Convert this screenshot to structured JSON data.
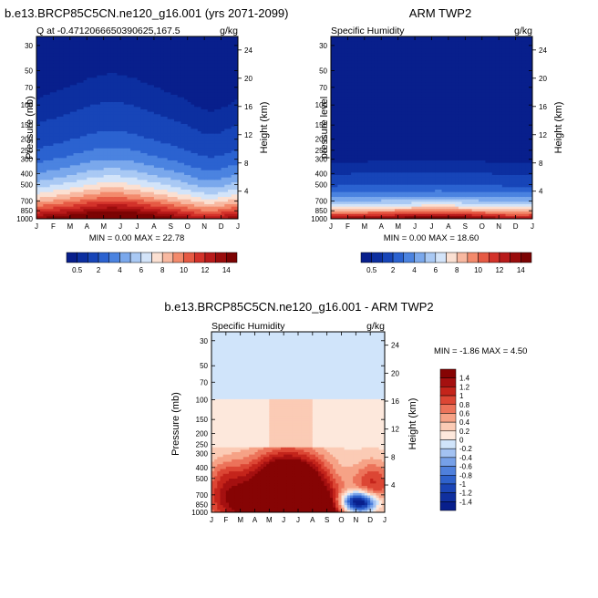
{
  "chart_data": [
    {
      "type": "heatmap",
      "title": "b.e13.BRCP85C5CN.ne120_g16.001 (yrs 2071-2099)",
      "left_label": "Q at -0.4712066650390625,167.5",
      "right_label": "g/kg",
      "xlabel": "",
      "ylabel": "Pressure (mb)",
      "y2label": "Height (km)",
      "x_ticks": [
        "J",
        "F",
        "M",
        "A",
        "M",
        "J",
        "J",
        "A",
        "S",
        "O",
        "N",
        "D",
        "J"
      ],
      "y_ticks": [
        30,
        50,
        70,
        100,
        150,
        200,
        250,
        300,
        400,
        500,
        700,
        850,
        1000
      ],
      "y2_ticks": [
        24,
        20,
        16,
        12,
        8,
        4
      ],
      "ylim": [
        1000,
        25
      ],
      "stats": "MIN =  0.00 MAX = 22.78",
      "min": 0.0,
      "max": 22.78,
      "colorbar_labels": [
        "0.5",
        "2",
        "4",
        "6",
        "8",
        "10",
        "12",
        "14"
      ],
      "colorbar_levels": [
        0.5,
        1,
        2,
        3,
        4,
        5,
        6,
        7,
        8,
        9,
        10,
        11,
        12,
        13,
        14
      ]
    },
    {
      "type": "heatmap",
      "title": "ARM TWP2",
      "left_label": "Specific Humidity",
      "right_label": "g/kg",
      "xlabel": "",
      "ylabel": "pressure level",
      "y2label": "Height (km)",
      "x_ticks": [
        "J",
        "F",
        "M",
        "A",
        "M",
        "J",
        "J",
        "A",
        "S",
        "O",
        "N",
        "D",
        "J"
      ],
      "y_ticks": [
        30,
        50,
        70,
        100,
        150,
        200,
        250,
        300,
        400,
        500,
        700,
        850,
        1000
      ],
      "y2_ticks": [
        24,
        20,
        16,
        12,
        8,
        4
      ],
      "ylim": [
        1000,
        25
      ],
      "stats": "MIN =  0.00 MAX = 18.60",
      "min": 0.0,
      "max": 18.6,
      "colorbar_labels": [
        "0.5",
        "2",
        "4",
        "6",
        "8",
        "10",
        "12",
        "14"
      ],
      "colorbar_levels": [
        0.5,
        1,
        2,
        3,
        4,
        5,
        6,
        7,
        8,
        9,
        10,
        11,
        12,
        13,
        14
      ]
    },
    {
      "type": "heatmap",
      "title": "b.e13.BRCP85C5CN.ne120_g16.001 - ARM TWP2",
      "left_label": "Specific Humidity",
      "right_label": "g/kg",
      "xlabel": "",
      "ylabel": "Pressure (mb)",
      "y2label": "Height (km)",
      "x_ticks": [
        "J",
        "F",
        "M",
        "A",
        "M",
        "J",
        "J",
        "A",
        "S",
        "O",
        "N",
        "D",
        "J"
      ],
      "y_ticks": [
        30,
        50,
        70,
        100,
        150,
        200,
        250,
        300,
        400,
        500,
        700,
        850,
        1000
      ],
      "y2_ticks": [
        24,
        20,
        16,
        12,
        8,
        4
      ],
      "ylim": [
        1000,
        25
      ],
      "stats": "MIN = -1.86 MAX =  4.50",
      "min": -1.86,
      "max": 4.5,
      "colorbar_labels": [
        "1.4",
        "1.2",
        "1",
        "0.8",
        "0.6",
        "0.4",
        "0.2",
        "0",
        "-0.2",
        "-0.4",
        "-0.6",
        "-0.8",
        "-1",
        "-1.2",
        "-1.4"
      ],
      "colorbar_levels": [
        -1.4,
        -1.2,
        -1,
        -0.8,
        -0.6,
        -0.4,
        -0.2,
        0,
        0.2,
        0.4,
        0.6,
        0.8,
        1,
        1.2,
        1.4
      ]
    }
  ],
  "colors": {
    "seq": [
      "#081f8c",
      "#0c2fa0",
      "#1745b8",
      "#2b62d0",
      "#4b83e0",
      "#7aa8ec",
      "#a9c9f4",
      "#d3e4f9",
      "#fbe0d2",
      "#f8b8a0",
      "#f38a6c",
      "#e65a44",
      "#d3322a",
      "#b81a1a",
      "#9a0c0c",
      "#7c0303"
    ],
    "diff": [
      "#081f8c",
      "#10309f",
      "#1b45b6",
      "#2f62cc",
      "#4f80dc",
      "#76a0e8",
      "#a3c2f2",
      "#d0e4fa",
      "#fde8dc",
      "#fbcbb5",
      "#f6a286",
      "#ec735a",
      "#dc4634",
      "#c4241b",
      "#a51010",
      "#860404"
    ]
  }
}
